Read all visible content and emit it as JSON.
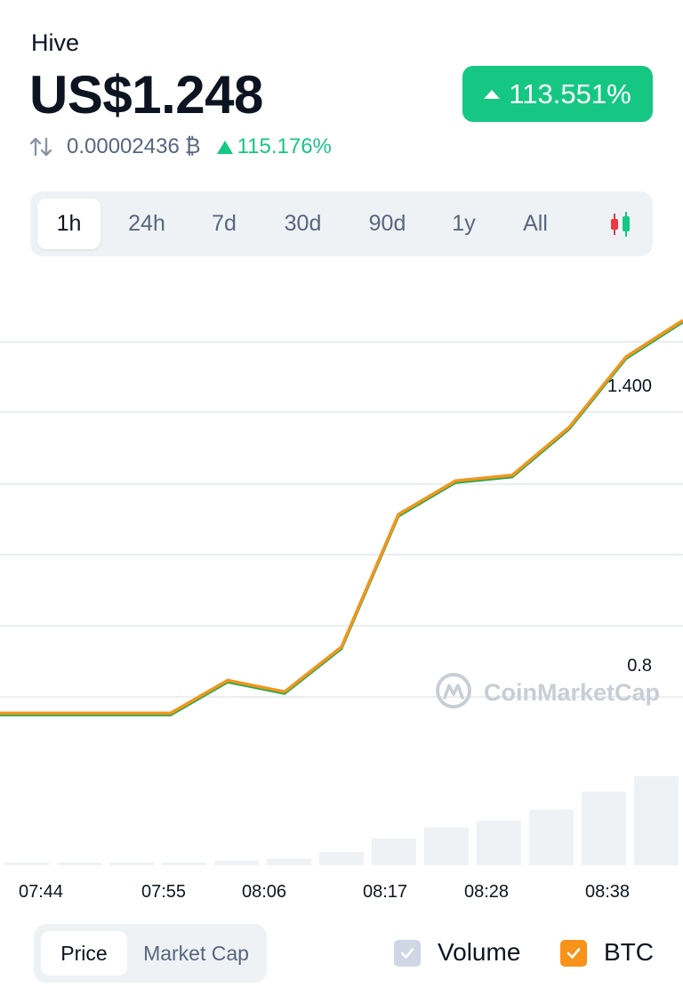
{
  "header": {
    "coin_name": "Hive",
    "price": "US$1.248",
    "change_pct": "113.551%",
    "btc_price": "0.00002436",
    "btc_symbol": "₿",
    "btc_change_pct": "115.176%"
  },
  "colors": {
    "positive": "#16c784",
    "line": "#f0961e",
    "line_under": "#2aa84a",
    "volume_bar": "#eff2f5",
    "grid": "#dfe3e8",
    "watermark": "#c8ced6"
  },
  "range_tabs": [
    "1h",
    "24h",
    "7d",
    "30d",
    "90d",
    "1y",
    "All"
  ],
  "active_range": "1h",
  "candlestick_icon": "candlestick-icon",
  "chart_data": {
    "type": "line",
    "x_tick_labels": [
      "07:44",
      "07:55",
      "08:06",
      "08:17",
      "08:28",
      "08:38"
    ],
    "y_tick_labels": [
      "1.400",
      "0.8"
    ],
    "watermark": "CoinMarketCap",
    "grid": true,
    "series": [
      {
        "x": [
          "07:39",
          "07:44",
          "07:50",
          "07:55",
          "08:01",
          "08:06",
          "08:11",
          "08:17",
          "08:22",
          "08:28",
          "08:33",
          "08:38",
          "08:43"
        ],
        "values": [
          0.745,
          0.745,
          0.745,
          0.745,
          0.808,
          0.786,
          0.872,
          1.126,
          1.19,
          1.201,
          1.293,
          1.428,
          1.498
        ]
      }
    ],
    "volume": [
      0.01,
      0.01,
      0.01,
      0.01,
      0.02,
      0.03,
      0.06,
      0.12,
      0.17,
      0.2,
      0.25,
      0.33,
      0.4
    ],
    "ylim": [
      0.44,
      1.6
    ]
  },
  "footer": {
    "chart_type_options": [
      "Price",
      "Market Cap"
    ],
    "active_chart_type": "Price",
    "volume_label": "Volume",
    "volume_checked": true,
    "btc_label": "BTC",
    "btc_checked": true
  }
}
